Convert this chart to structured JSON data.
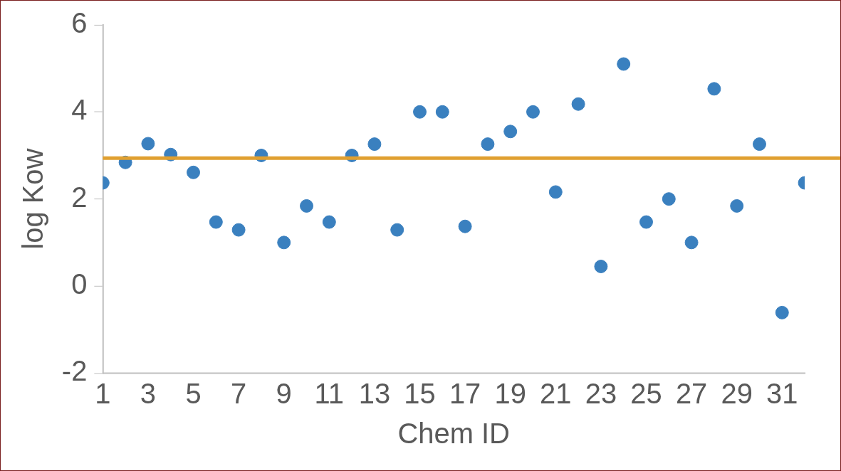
{
  "chart_data": {
    "type": "scatter",
    "xlabel": "Chem ID",
    "ylabel": "log Kow",
    "x": [
      1,
      2,
      3,
      4,
      5,
      6,
      7,
      8,
      9,
      10,
      11,
      12,
      13,
      14,
      15,
      16,
      17,
      18,
      19,
      20,
      21,
      22,
      23,
      24,
      25,
      26,
      27,
      28,
      29,
      30,
      31,
      32
    ],
    "series": [
      {
        "color": "#3a80bf",
        "values": [
          2.37,
          2.84,
          3.27,
          3.02,
          2.61,
          1.47,
          1.29,
          3.0,
          1.0,
          1.84,
          1.47,
          3.0,
          3.26,
          1.29,
          4.0,
          4.0,
          1.37,
          3.26,
          3.55,
          4.0,
          2.16,
          4.18,
          0.45,
          5.1,
          1.47,
          2.0,
          1.0,
          4.53,
          1.84,
          3.26,
          -0.61,
          2.37
        ]
      }
    ],
    "xlim": [
      1,
      32
    ],
    "xticks": [
      1,
      3,
      5,
      7,
      9,
      11,
      13,
      15,
      17,
      19,
      21,
      23,
      25,
      27,
      29,
      31
    ],
    "ylim": [
      -2,
      6
    ],
    "yticks": [
      -2,
      0,
      2,
      4,
      6
    ],
    "ref_lines": [
      {
        "axis": "y",
        "value": 2.94,
        "color": "#e0a030"
      }
    ],
    "grid": false,
    "legend": false,
    "marker": "circle"
  }
}
